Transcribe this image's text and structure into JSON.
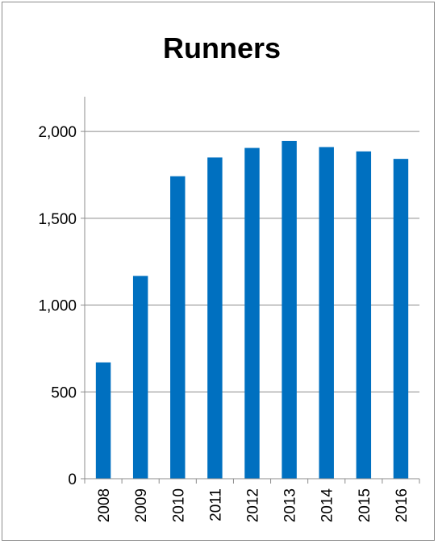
{
  "chart_data": {
    "type": "bar",
    "title": "Runners",
    "xlabel": "",
    "ylabel": "",
    "categories": [
      "2008",
      "2009",
      "2010",
      "2011",
      "2012",
      "2013",
      "2014",
      "2015",
      "2016"
    ],
    "values": [
      670,
      1168,
      1742,
      1850,
      1905,
      1945,
      1910,
      1885,
      1842
    ],
    "ylim": [
      0,
      2200
    ],
    "yticks": [
      0,
      500,
      1000,
      1500,
      2000
    ],
    "ytick_labels": [
      "0",
      "500",
      "1,000",
      "1,500",
      "2,000"
    ],
    "bar_color": "#0070C0",
    "grid": true,
    "legend": "none"
  }
}
